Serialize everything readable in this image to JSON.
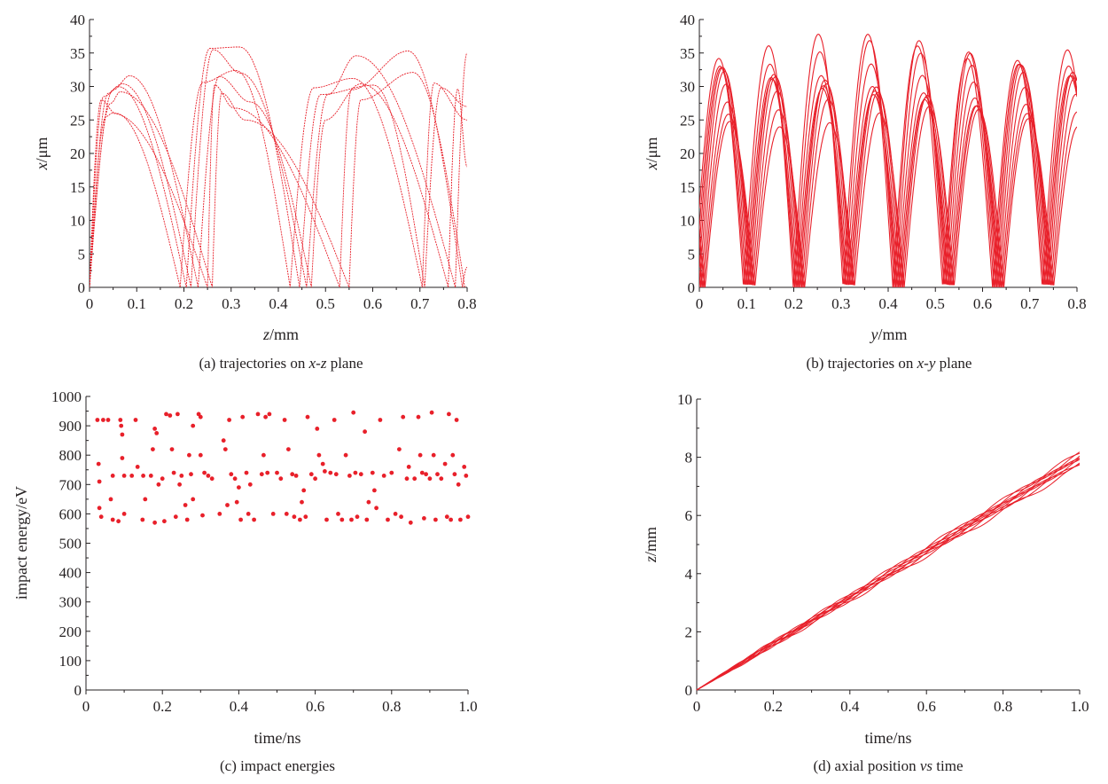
{
  "colors": {
    "series": "#e8202a",
    "axis": "#231f20"
  },
  "chart_data": [
    {
      "type": "line",
      "caption_parts": [
        "(a) trajectories on ",
        "x-z",
        " plane"
      ],
      "xlabel": {
        "italic": "z",
        "rest": "/mm"
      },
      "ylabel": {
        "italic": "x",
        "rest": "/μm"
      },
      "xlim": [
        0,
        0.8
      ],
      "ylim": [
        0,
        40
      ],
      "xticks": [
        "0",
        "0.1",
        "0.2",
        "0.3",
        "0.4",
        "0.5",
        "0.6",
        "0.7",
        "0.8"
      ],
      "yticks": [
        "0",
        "5",
        "10",
        "15",
        "20",
        "25",
        "30",
        "35",
        "40"
      ],
      "series": [
        {
          "values": [
            [
              0,
              0
            ],
            [
              0.025,
              28
            ],
            [
              0.055,
              26
            ],
            [
              0.192,
              0
            ],
            [
              0.24,
              30.6
            ],
            [
              0.31,
              32.4
            ],
            [
              0.425,
              0
            ],
            [
              0.475,
              29.8
            ],
            [
              0.558,
              31.2
            ],
            [
              0.705,
              0
            ],
            [
              0.73,
              30.5
            ],
            [
              0.8,
              25
            ]
          ]
        },
        {
          "values": [
            [
              0,
              0
            ],
            [
              0.04,
              29
            ],
            [
              0.06,
              30
            ],
            [
              0.205,
              0
            ],
            [
              0.255,
              35.7
            ],
            [
              0.318,
              35.9
            ],
            [
              0.445,
              0
            ],
            [
              0.49,
              28.8
            ],
            [
              0.602,
              30.2
            ],
            [
              0.71,
              0
            ],
            [
              0.745,
              29.8
            ],
            [
              0.8,
              27
            ]
          ]
        },
        {
          "values": [
            [
              0,
              0
            ],
            [
              0.03,
              28.5
            ],
            [
              0.07,
              30.4
            ],
            [
              0.215,
              0
            ],
            [
              0.262,
              35.5
            ],
            [
              0.32,
              32
            ],
            [
              0.46,
              0
            ],
            [
              0.505,
              28.8
            ],
            [
              0.565,
              34.6
            ],
            [
              0.775,
              0
            ],
            [
              0.8,
              35
            ]
          ]
        },
        {
          "values": [
            [
              0,
              0
            ],
            [
              0.05,
              29.5
            ],
            [
              0.085,
              31.6
            ],
            [
              0.23,
              0
            ],
            [
              0.275,
              31.5
            ],
            [
              0.34,
              27.7
            ],
            [
              0.47,
              0
            ],
            [
              0.5,
              25
            ],
            [
              0.575,
              30.4
            ],
            [
              0.76,
              0
            ],
            [
              0.78,
              29.6
            ],
            [
              0.8,
              18
            ]
          ]
        },
        {
          "values": [
            [
              0,
              0
            ],
            [
              0.035,
              25.5
            ],
            [
              0.048,
              26
            ],
            [
              0.25,
              0
            ],
            [
              0.265,
              30.2
            ],
            [
              0.305,
              26.8
            ],
            [
              0.53,
              0
            ],
            [
              0.555,
              29.5
            ],
            [
              0.675,
              35.3
            ],
            [
              0.79,
              0
            ],
            [
              0.8,
              3
            ]
          ]
        },
        {
          "values": [
            [
              0,
              0
            ],
            [
              0.045,
              27.5
            ],
            [
              0.065,
              29.2
            ],
            [
              0.26,
              0
            ],
            [
              0.28,
              29
            ],
            [
              0.33,
              25
            ],
            [
              0.55,
              0
            ],
            [
              0.575,
              28
            ],
            [
              0.685,
              32.1
            ],
            [
              0.795,
              0
            ]
          ]
        }
      ]
    },
    {
      "type": "line",
      "caption_parts": [
        "(b) trajectories on ",
        "x-y",
        " plane"
      ],
      "xlabel": {
        "italic": "y",
        "rest": "/mm"
      },
      "ylabel": {
        "italic": "x",
        "rest": "/μm"
      },
      "xlim": [
        0,
        0.8
      ],
      "ylim": [
        0,
        40
      ],
      "xticks": [
        "0",
        "0.1",
        "0.2",
        "0.3",
        "0.4",
        "0.5",
        "0.6",
        "0.7",
        "0.8"
      ],
      "yticks": [
        "0",
        "5",
        "10",
        "15",
        "20",
        "25",
        "30",
        "35",
        "40"
      ],
      "period": 0.1055,
      "amplitudes": [
        25.5,
        27.5,
        28.7,
        29.7,
        30.5,
        31.5,
        33.2,
        35.0,
        35.9
      ],
      "jitter": 0.003
    },
    {
      "type": "scatter",
      "caption_parts": [
        "(c) impact energies"
      ],
      "xlabel": {
        "italic": "",
        "rest": "time/ns"
      },
      "ylabel": {
        "italic": "",
        "rest": "impact energy/eV"
      },
      "xlim": [
        0,
        1.0
      ],
      "ylim": [
        0,
        1000
      ],
      "xticks": [
        "0",
        "0.2",
        "0.4",
        "0.6",
        "0.8",
        "1.0"
      ],
      "yticks": [
        "0",
        "100",
        "200",
        "300",
        "400",
        "500",
        "600",
        "700",
        "800",
        "900",
        "1000"
      ],
      "points": [
        [
          0.03,
          920
        ],
        [
          0.033,
          770
        ],
        [
          0.035,
          710
        ],
        [
          0.035,
          620
        ],
        [
          0.04,
          590
        ],
        [
          0.045,
          920
        ],
        [
          0.058,
          920
        ],
        [
          0.065,
          650
        ],
        [
          0.07,
          730
        ],
        [
          0.07,
          580
        ],
        [
          0.085,
          575
        ],
        [
          0.09,
          920
        ],
        [
          0.092,
          900
        ],
        [
          0.095,
          870
        ],
        [
          0.095,
          790
        ],
        [
          0.1,
          730
        ],
        [
          0.1,
          600
        ],
        [
          0.12,
          730
        ],
        [
          0.13,
          920
        ],
        [
          0.135,
          760
        ],
        [
          0.148,
          580
        ],
        [
          0.15,
          730
        ],
        [
          0.155,
          650
        ],
        [
          0.17,
          730
        ],
        [
          0.175,
          820
        ],
        [
          0.18,
          890
        ],
        [
          0.18,
          570
        ],
        [
          0.185,
          875
        ],
        [
          0.19,
          700
        ],
        [
          0.2,
          720
        ],
        [
          0.205,
          575
        ],
        [
          0.21,
          940
        ],
        [
          0.22,
          935
        ],
        [
          0.225,
          820
        ],
        [
          0.23,
          740
        ],
        [
          0.235,
          590
        ],
        [
          0.24,
          940
        ],
        [
          0.245,
          700
        ],
        [
          0.25,
          730
        ],
        [
          0.26,
          630
        ],
        [
          0.265,
          580
        ],
        [
          0.27,
          800
        ],
        [
          0.275,
          735
        ],
        [
          0.28,
          900
        ],
        [
          0.28,
          650
        ],
        [
          0.295,
          940
        ],
        [
          0.3,
          930
        ],
        [
          0.3,
          800
        ],
        [
          0.305,
          595
        ],
        [
          0.31,
          740
        ],
        [
          0.32,
          730
        ],
        [
          0.33,
          720
        ],
        [
          0.35,
          600
        ],
        [
          0.36,
          850
        ],
        [
          0.365,
          820
        ],
        [
          0.37,
          630
        ],
        [
          0.375,
          920
        ],
        [
          0.38,
          735
        ],
        [
          0.39,
          720
        ],
        [
          0.395,
          640
        ],
        [
          0.4,
          690
        ],
        [
          0.405,
          580
        ],
        [
          0.41,
          930
        ],
        [
          0.42,
          740
        ],
        [
          0.425,
          600
        ],
        [
          0.43,
          700
        ],
        [
          0.44,
          580
        ],
        [
          0.45,
          940
        ],
        [
          0.46,
          735
        ],
        [
          0.465,
          800
        ],
        [
          0.47,
          930
        ],
        [
          0.475,
          740
        ],
        [
          0.48,
          940
        ],
        [
          0.49,
          600
        ],
        [
          0.5,
          740
        ],
        [
          0.51,
          720
        ],
        [
          0.52,
          920
        ],
        [
          0.525,
          600
        ],
        [
          0.53,
          820
        ],
        [
          0.54,
          735
        ],
        [
          0.545,
          590
        ],
        [
          0.55,
          730
        ],
        [
          0.56,
          580
        ],
        [
          0.565,
          640
        ],
        [
          0.57,
          680
        ],
        [
          0.575,
          590
        ],
        [
          0.58,
          930
        ],
        [
          0.59,
          735
        ],
        [
          0.6,
          720
        ],
        [
          0.605,
          890
        ],
        [
          0.61,
          800
        ],
        [
          0.62,
          770
        ],
        [
          0.625,
          745
        ],
        [
          0.63,
          580
        ],
        [
          0.64,
          740
        ],
        [
          0.65,
          920
        ],
        [
          0.655,
          735
        ],
        [
          0.66,
          600
        ],
        [
          0.67,
          580
        ],
        [
          0.68,
          800
        ],
        [
          0.69,
          730
        ],
        [
          0.695,
          580
        ],
        [
          0.7,
          945
        ],
        [
          0.705,
          740
        ],
        [
          0.71,
          590
        ],
        [
          0.72,
          735
        ],
        [
          0.73,
          880
        ],
        [
          0.735,
          580
        ],
        [
          0.74,
          640
        ],
        [
          0.75,
          740
        ],
        [
          0.755,
          680
        ],
        [
          0.76,
          620
        ],
        [
          0.77,
          920
        ],
        [
          0.78,
          730
        ],
        [
          0.79,
          580
        ],
        [
          0.8,
          740
        ],
        [
          0.81,
          600
        ],
        [
          0.82,
          820
        ],
        [
          0.825,
          590
        ],
        [
          0.83,
          930
        ],
        [
          0.84,
          720
        ],
        [
          0.845,
          760
        ],
        [
          0.85,
          570
        ],
        [
          0.86,
          720
        ],
        [
          0.87,
          930
        ],
        [
          0.875,
          800
        ],
        [
          0.88,
          740
        ],
        [
          0.885,
          585
        ],
        [
          0.89,
          735
        ],
        [
          0.9,
          720
        ],
        [
          0.905,
          945
        ],
        [
          0.91,
          800
        ],
        [
          0.915,
          580
        ],
        [
          0.92,
          735
        ],
        [
          0.93,
          720
        ],
        [
          0.94,
          770
        ],
        [
          0.945,
          590
        ],
        [
          0.95,
          940
        ],
        [
          0.955,
          580
        ],
        [
          0.96,
          800
        ],
        [
          0.965,
          735
        ],
        [
          0.97,
          920
        ],
        [
          0.975,
          700
        ],
        [
          0.98,
          580
        ],
        [
          0.99,
          760
        ],
        [
          0.995,
          730
        ],
        [
          1.0,
          590
        ]
      ]
    },
    {
      "type": "line",
      "caption_parts": [
        "(d) axial position ",
        "vs",
        " time"
      ],
      "xlabel": {
        "italic": "",
        "rest": "time/ns"
      },
      "ylabel": {
        "italic": "z",
        "rest": "/mm"
      },
      "xlim": [
        0,
        1.0
      ],
      "ylim": [
        0,
        10
      ],
      "xticks": [
        "0",
        "0.2",
        "0.4",
        "0.6",
        "0.8",
        "1.0"
      ],
      "yticks": [
        "0",
        "2",
        "4",
        "6",
        "8",
        "10"
      ],
      "slopes": [
        7.7,
        7.8,
        7.85,
        7.9,
        7.95,
        8.0,
        8.05,
        8.1,
        8.15
      ],
      "wiggle": 0.08
    }
  ]
}
